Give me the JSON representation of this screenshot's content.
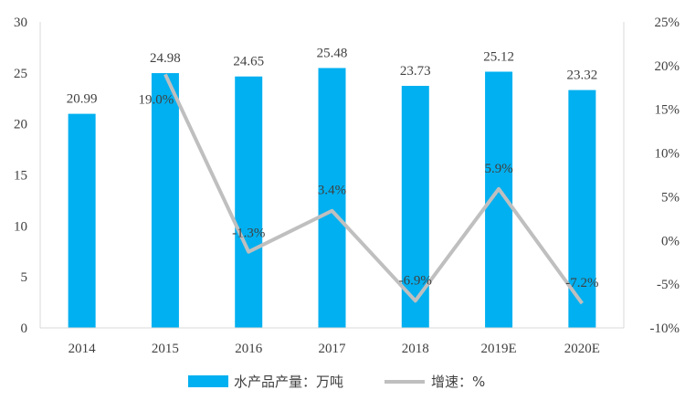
{
  "chart_data": {
    "type": "bar",
    "categories": [
      "2014",
      "2015",
      "2016",
      "2017",
      "2018",
      "2019E",
      "2020E"
    ],
    "series": [
      {
        "name": "水产品产量：万吨",
        "type": "bar",
        "axis": "left",
        "color": "#00B0F0",
        "values": [
          20.99,
          24.98,
          24.65,
          25.48,
          23.73,
          25.12,
          23.32
        ],
        "labels": [
          "20.99",
          "24.98",
          "24.65",
          "25.48",
          "23.73",
          "25.12",
          "23.32"
        ]
      },
      {
        "name": "增速：%",
        "type": "line",
        "axis": "right",
        "color": "#BFBFBF",
        "values": [
          null,
          19.0,
          -1.3,
          3.4,
          -6.9,
          5.9,
          -7.2
        ],
        "labels": [
          "",
          "19.0%",
          "-1.3%",
          "3.4%",
          "-6.9%",
          "5.9%",
          "-7.2%"
        ]
      }
    ],
    "y_left": {
      "min": 0,
      "max": 30,
      "step": 5,
      "ticks": [
        "0",
        "5",
        "10",
        "15",
        "20",
        "25",
        "30"
      ]
    },
    "y_right": {
      "min": -10,
      "max": 25,
      "step": 5,
      "ticks": [
        "-10%",
        "-5%",
        "0%",
        "5%",
        "10%",
        "15%",
        "20%",
        "25%"
      ]
    },
    "grid": false,
    "legend_position": "bottom",
    "title": "",
    "xlabel": "",
    "ylabel": ""
  }
}
